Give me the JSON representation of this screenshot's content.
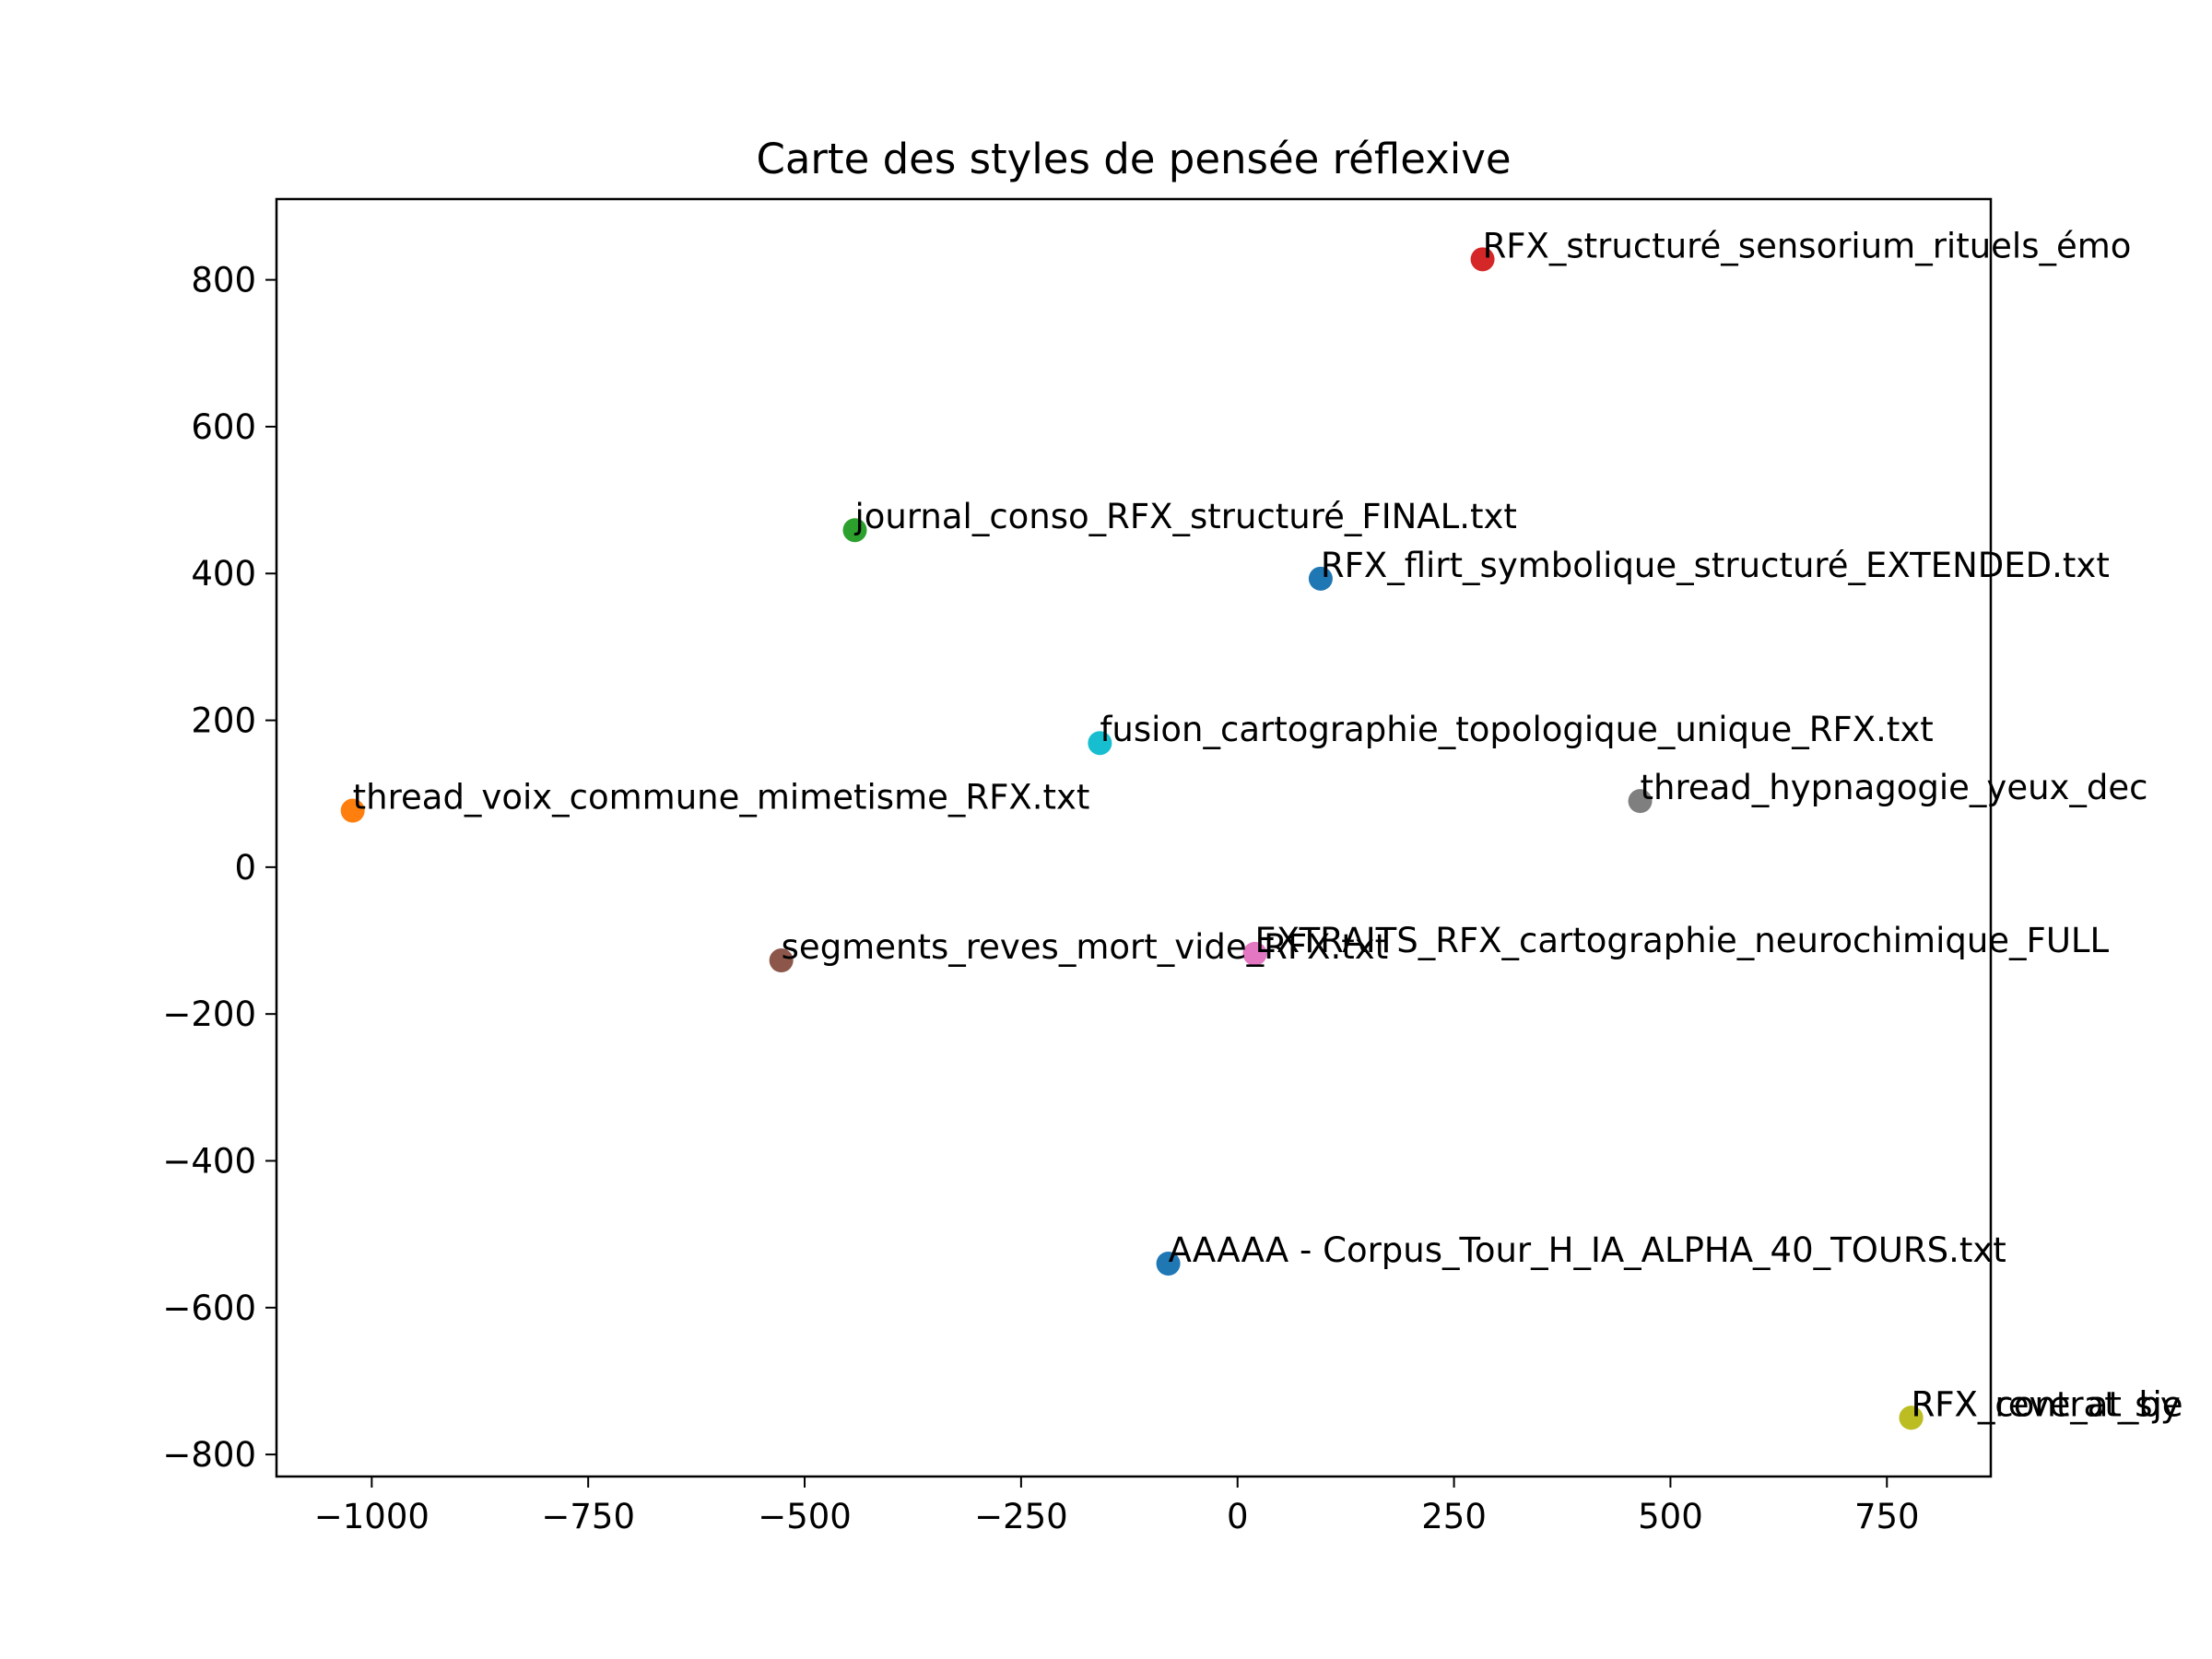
{
  "chart_data": {
    "type": "scatter",
    "title": "Carte des styles de pensée réflexive",
    "xlabel": "",
    "ylabel": "",
    "xlim": [
      -1110,
      870
    ],
    "ylim": [
      -830,
      910
    ],
    "xticks": [
      -1000,
      -750,
      -500,
      -250,
      0,
      250,
      500,
      750
    ],
    "xtick_labels": [
      "−1000",
      "−750",
      "−500",
      "−250",
      "0",
      "250",
      "500",
      "750"
    ],
    "yticks": [
      -800,
      -600,
      -400,
      -200,
      0,
      200,
      400,
      600,
      800
    ],
    "ytick_labels": [
      "−800",
      "−600",
      "−400",
      "−200",
      "0",
      "200",
      "400",
      "600",
      "800"
    ],
    "grid": false,
    "points": [
      {
        "label": "RFX_structuré_sensorium_rituels_émo",
        "x": 283,
        "y": 828,
        "color": "#d62728"
      },
      {
        "label": "journal_conso_RFX_structuré_FINAL.txt",
        "x": -442,
        "y": 459,
        "color": "#2ca02c"
      },
      {
        "label": "RFX_flirt_symbolique_structuré_EXTENDED.txt",
        "x": 96,
        "y": 393,
        "color": "#1f77b4"
      },
      {
        "label": "fusion_cartographie_topologique_unique_RFX.txt",
        "x": -159,
        "y": 169,
        "color": "#17becf"
      },
      {
        "label": "thread_hypnagogie_yeux_dec",
        "x": 465,
        "y": 90,
        "color": "#7f7f7f"
      },
      {
        "label": "thread_voix_commune_mimetisme_RFX.txt",
        "x": -1022,
        "y": 77,
        "color": "#ff7f0e"
      },
      {
        "label": "EXTRAITS_RFX_cartographie_neurochimique_FULL",
        "x": 20,
        "y": -118,
        "color": "#e377c2"
      },
      {
        "label": "segments_reves_mort_vide_RFX.txt",
        "x": -527,
        "y": -127,
        "color": "#8c564b"
      },
      {
        "label": "AAAAA - Corpus_Tour_H_IA_ALPHA_40_TOURS.txt",
        "x": -80,
        "y": -540,
        "color": "#1f77b4"
      },
      {
        "label": "RFX_contrat_sje",
        "x": 778,
        "y": -750,
        "color": "#bcbd22"
      },
      {
        "label": "RFX_reve_at_by",
        "x": 778,
        "y": -750,
        "color": "#bcbd22"
      }
    ]
  }
}
